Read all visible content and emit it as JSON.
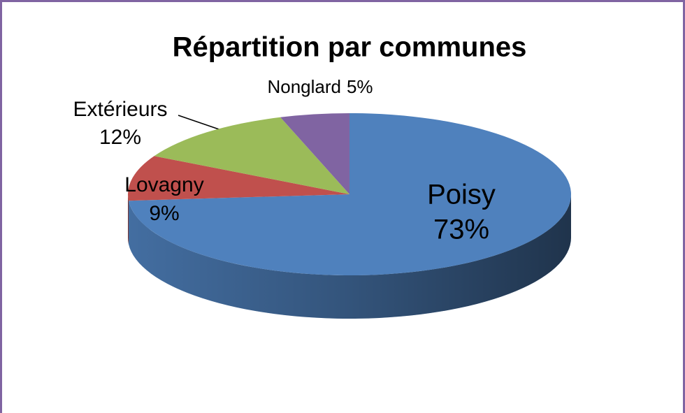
{
  "chart_data": {
    "type": "pie3d",
    "title": "Répartition par communes",
    "categories": [
      "Poisy",
      "Lovagny",
      "Extérieurs",
      "Nonglard"
    ],
    "values": [
      73,
      9,
      12,
      5
    ],
    "value_labels": [
      "73%",
      "9%",
      "12%",
      "5%"
    ],
    "colors": [
      "#4f81bd",
      "#c0504d",
      "#9bbb59",
      "#8064a2"
    ]
  }
}
